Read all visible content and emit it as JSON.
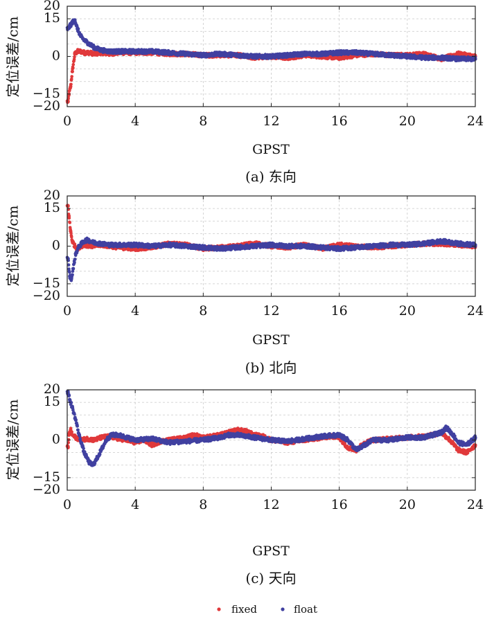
{
  "chart_data": [
    {
      "type": "scatter",
      "caption": "(a) 东向",
      "xlabel": "GPST",
      "ylabel": "定位误差/cm",
      "xlim": [
        0,
        24
      ],
      "ylim": [
        -20,
        20
      ],
      "xticks": [
        0,
        4,
        8,
        12,
        16,
        20,
        24
      ],
      "yticks": [
        20,
        15,
        0,
        -15,
        -20
      ],
      "grid": true,
      "series": [
        {
          "name": "fixed",
          "color": "#e0393b",
          "x": [
            0.05,
            0.1,
            0.2,
            0.3,
            0.45,
            0.6,
            0.8,
            1.0,
            1.3,
            1.6,
            2.0,
            2.5,
            3.0,
            3.5,
            4.0,
            5.0,
            6.0,
            7.0,
            8.0,
            9.0,
            10.0,
            11.0,
            12.0,
            13.0,
            14.0,
            15.0,
            16.0,
            17.0,
            18.0,
            19.0,
            20.0,
            21.0,
            21.5,
            22.0,
            23.0,
            23.5,
            24.0
          ],
          "y": [
            -18,
            -15,
            -12,
            -6,
            1,
            2,
            2,
            1.5,
            1.5,
            1,
            1.5,
            1,
            1.5,
            1.5,
            1.5,
            1.5,
            1,
            1,
            0.5,
            0.5,
            0.5,
            -0.5,
            0,
            -0.5,
            0.5,
            0,
            -0.5,
            0.5,
            1,
            0.5,
            0.5,
            1,
            0,
            -1,
            1,
            0.5,
            0
          ]
        },
        {
          "name": "float",
          "color": "#4040a0",
          "x": [
            0.05,
            0.15,
            0.3,
            0.45,
            0.6,
            0.8,
            1.0,
            1.3,
            1.6,
            2.0,
            2.5,
            3.0,
            3.5,
            4.0,
            5.0,
            6.0,
            7.0,
            8.0,
            9.0,
            10.0,
            11.0,
            12.0,
            13.0,
            14.0,
            15.0,
            16.0,
            17.0,
            18.0,
            19.0,
            20.0,
            21.0,
            22.0,
            23.0,
            24.0
          ],
          "y": [
            11,
            12,
            13.5,
            14.5,
            11,
            8,
            6.5,
            5,
            3.5,
            2.5,
            2,
            2,
            2,
            2,
            2,
            1.5,
            1,
            0.5,
            1,
            0.5,
            0,
            0,
            0.5,
            1,
            1,
            1.5,
            1.5,
            1,
            0.5,
            0,
            -0.5,
            -0.5,
            -1,
            -1
          ]
        }
      ]
    },
    {
      "type": "scatter",
      "caption": "(b) 北向",
      "xlabel": "GPST",
      "ylabel": "定位误差/cm",
      "xlim": [
        0,
        24
      ],
      "ylim": [
        -20,
        20
      ],
      "xticks": [
        0,
        4,
        8,
        12,
        16,
        20,
        24
      ],
      "yticks": [
        20,
        15,
        0,
        -15,
        -20
      ],
      "grid": true,
      "series": [
        {
          "name": "fixed",
          "color": "#e0393b",
          "x": [
            0.05,
            0.1,
            0.2,
            0.3,
            0.45,
            0.6,
            0.8,
            1.0,
            1.5,
            2.0,
            3.0,
            4.0,
            5.0,
            6.0,
            7.0,
            8.0,
            9.0,
            10.0,
            11.0,
            12.0,
            13.0,
            14.0,
            15.0,
            16.0,
            17.0,
            18.0,
            19.0,
            20.0,
            21.0,
            22.0,
            23.0,
            24.0
          ],
          "y": [
            16,
            12,
            6,
            2,
            0,
            -1,
            0,
            0.5,
            0,
            0.5,
            -0.5,
            -1,
            -0.5,
            1,
            0.5,
            -1,
            -0.5,
            0,
            1,
            0,
            -0.5,
            0.5,
            -1,
            0.5,
            0,
            -0.5,
            0,
            0.5,
            1,
            1,
            0.5,
            0
          ]
        },
        {
          "name": "float",
          "color": "#4040a0",
          "x": [
            0.05,
            0.15,
            0.25,
            0.35,
            0.5,
            0.7,
            1.0,
            1.2,
            1.5,
            2.0,
            2.5,
            3.0,
            4.0,
            5.0,
            6.0,
            7.0,
            8.0,
            9.0,
            10.0,
            11.0,
            12.0,
            13.0,
            14.0,
            15.0,
            16.0,
            17.0,
            18.0,
            19.0,
            20.0,
            21.0,
            22.0,
            23.0,
            24.0
          ],
          "y": [
            -5,
            -12,
            -13,
            -9,
            -3,
            0,
            2,
            2.5,
            1.5,
            1,
            0.5,
            0.5,
            0.5,
            0,
            0.5,
            0,
            -0.5,
            -1,
            -0.5,
            0,
            0.5,
            0,
            0,
            -0.5,
            -1,
            -0.5,
            0,
            0.5,
            0.5,
            1,
            2,
            1,
            0.5
          ]
        }
      ]
    },
    {
      "type": "scatter",
      "caption": "(c) 天向",
      "xlabel": "GPST",
      "ylabel": "定位误差/cm",
      "xlim": [
        0,
        24
      ],
      "ylim": [
        -20,
        20
      ],
      "xticks": [
        0,
        4,
        8,
        12,
        16,
        20,
        24
      ],
      "yticks": [
        20,
        15,
        0,
        -15,
        -20
      ],
      "grid": true,
      "series": [
        {
          "name": "fixed",
          "color": "#e0393b",
          "x": [
            0.05,
            0.1,
            0.2,
            0.3,
            0.5,
            0.8,
            1.2,
            1.6,
            2.0,
            2.5,
            3.0,
            3.5,
            4.0,
            4.5,
            5.0,
            5.5,
            6.0,
            7.0,
            7.5,
            8.0,
            8.5,
            9.0,
            9.5,
            10.0,
            10.5,
            11.0,
            11.5,
            12.0,
            13.0,
            14.0,
            15.0,
            15.5,
            16.0,
            16.5,
            17.0,
            17.5,
            18.0,
            19.0,
            20.0,
            21.0,
            21.5,
            22.0,
            22.5,
            23.0,
            23.5,
            24.0
          ],
          "y": [
            -3,
            2,
            4,
            2,
            1,
            0,
            0.5,
            0,
            1,
            1.5,
            0.5,
            0,
            -1,
            0,
            -2,
            -0.5,
            0,
            1,
            2,
            1,
            1.5,
            2,
            3,
            4,
            3.5,
            2,
            1.5,
            0,
            -1,
            0,
            1,
            1.5,
            1,
            -3,
            -4,
            -1,
            0,
            0.5,
            1,
            1.5,
            2,
            3,
            0,
            -4,
            -5,
            -2
          ]
        },
        {
          "name": "float",
          "color": "#4040a0",
          "x": [
            0.05,
            0.15,
            0.3,
            0.5,
            0.7,
            1.0,
            1.3,
            1.5,
            1.7,
            2.0,
            2.3,
            2.6,
            3.0,
            3.5,
            4.0,
            5.0,
            6.0,
            7.0,
            8.0,
            9.0,
            9.5,
            10.0,
            10.5,
            11.0,
            12.0,
            13.0,
            14.0,
            15.0,
            16.0,
            16.5,
            17.0,
            17.5,
            18.0,
            19.0,
            20.0,
            21.0,
            22.0,
            22.3,
            22.7,
            23.0,
            23.5,
            24.0
          ],
          "y": [
            19,
            16,
            13,
            8,
            2,
            -5,
            -9,
            -10,
            -8,
            -4,
            0,
            2,
            2,
            1,
            0,
            0.5,
            -1,
            -0.5,
            0,
            1,
            2,
            2,
            1.5,
            1,
            0,
            -0.5,
            0.5,
            1.5,
            2,
            0,
            -4,
            -2,
            0,
            0,
            1,
            1,
            3,
            5,
            2,
            -1,
            -2,
            1
          ]
        }
      ]
    }
  ],
  "legend": [
    {
      "label": "fixed",
      "color": "#e0393b"
    },
    {
      "label": "float",
      "color": "#4040a0"
    }
  ]
}
